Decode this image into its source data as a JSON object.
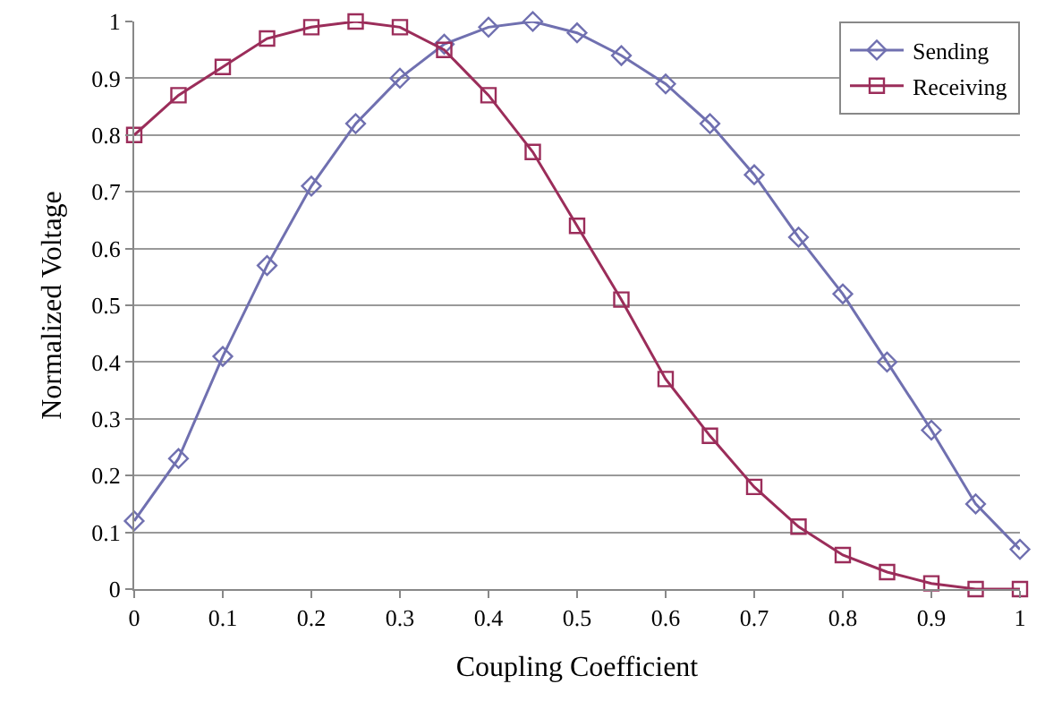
{
  "chart_data": {
    "type": "line",
    "xlabel": "Coupling Coefficient",
    "ylabel": "Normalized Voltage",
    "x": [
      0,
      0.05,
      0.1,
      0.15,
      0.2,
      0.25,
      0.3,
      0.35,
      0.4,
      0.45,
      0.5,
      0.55,
      0.6,
      0.65,
      0.7,
      0.75,
      0.8,
      0.85,
      0.9,
      0.95,
      1
    ],
    "series": [
      {
        "name": "Sending",
        "color": "#7070b0",
        "marker": "diamond",
        "values": [
          0.12,
          0.23,
          0.41,
          0.57,
          0.71,
          0.82,
          0.9,
          0.96,
          0.99,
          1.0,
          0.98,
          0.94,
          0.89,
          0.82,
          0.73,
          0.62,
          0.52,
          0.4,
          0.28,
          0.15,
          0.07
        ]
      },
      {
        "name": "Receiving",
        "color": "#9b2d5a",
        "marker": "square",
        "values": [
          0.8,
          0.87,
          0.92,
          0.97,
          0.99,
          1.0,
          0.99,
          0.95,
          0.87,
          0.77,
          0.64,
          0.51,
          0.37,
          0.27,
          0.18,
          0.11,
          0.06,
          0.03,
          0.01,
          0.0,
          0.0
        ]
      }
    ],
    "xlim": [
      0,
      1
    ],
    "xticks": [
      0,
      0.1,
      0.2,
      0.3,
      0.4,
      0.5,
      0.6,
      0.7,
      0.8,
      0.9,
      1
    ],
    "ylim": [
      0,
      1
    ],
    "yticks": [
      0,
      0.1,
      0.2,
      0.3,
      0.4,
      0.5,
      0.6,
      0.7,
      0.8,
      0.9,
      1
    ],
    "grid": "y",
    "legend": "top right",
    "line_style": "solid"
  }
}
